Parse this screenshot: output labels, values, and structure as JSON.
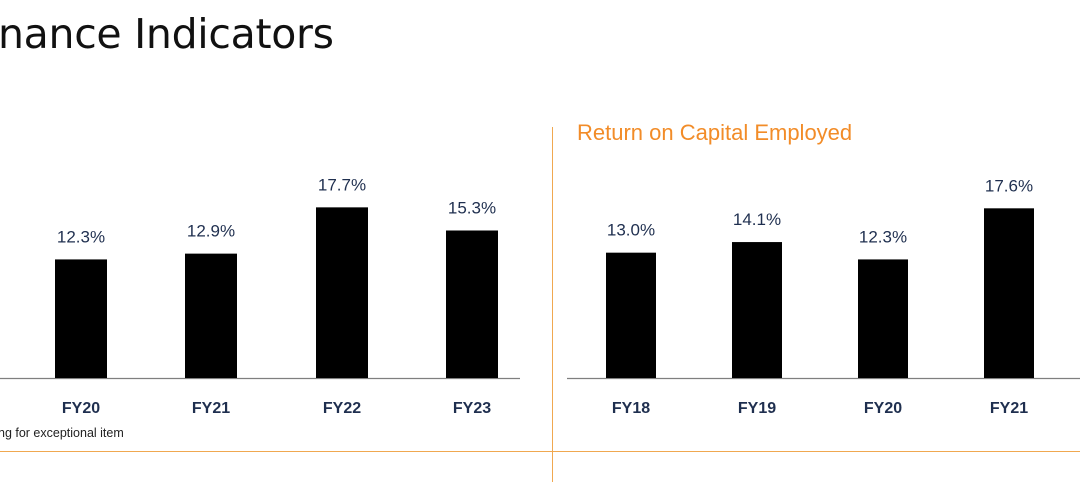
{
  "page": {
    "title": "nance Indicators",
    "footnote": "ng for exceptional item",
    "accent_color": "#f0a850",
    "title_color": "#f28c28"
  },
  "chart_data": [
    {
      "type": "bar",
      "title": "",
      "categories": [
        "FY20",
        "FY21",
        "FY22",
        "FY23"
      ],
      "values": [
        12.3,
        12.9,
        17.7,
        15.3
      ],
      "value_labels": [
        "12.3%",
        "12.9%",
        "17.7%",
        "15.3%"
      ],
      "bar_color": "#000000",
      "ylim": [
        0,
        19.5
      ],
      "grid": false
    },
    {
      "type": "bar",
      "title": "Return on Capital Employed",
      "categories": [
        "FY18",
        "FY19",
        "FY20",
        "FY21"
      ],
      "values": [
        13.0,
        14.1,
        12.3,
        17.6
      ],
      "value_labels": [
        "13.0%",
        "14.1%",
        "12.3%",
        "17.6%"
      ],
      "bar_color": "#000000",
      "ylim": [
        0,
        19.5
      ],
      "grid": false
    }
  ]
}
